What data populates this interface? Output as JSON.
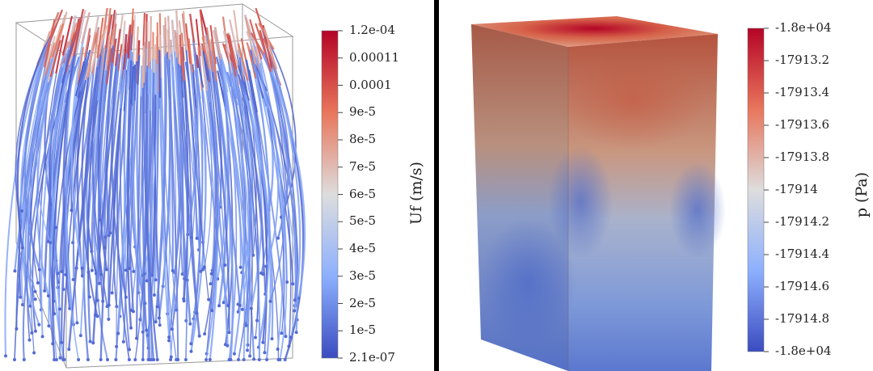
{
  "left_colorbar": {
    "title": "Uf (m/s)",
    "ticks": [
      "1.2e-04",
      "0.00011",
      "0.0001",
      "9e-5",
      "8e-5",
      "7e-5",
      "6e-5",
      "5e-5",
      "4e-5",
      "3e-5",
      "2e-5",
      "1e-5",
      "2.1e-07"
    ]
  },
  "right_colorbar": {
    "title": "p (Pa)",
    "ticks": [
      "-1.8e+04",
      "-17913.2",
      "-17913.4",
      "-17913.6",
      "-17913.8",
      "-17914",
      "-17914.2",
      "-17914.4",
      "-17914.6",
      "-17914.8",
      "-1.8e+04"
    ]
  },
  "colors": {
    "colormap_high": "#b40426",
    "colormap_mid": "#dddddd",
    "colormap_low": "#3b4cc0",
    "divider": "#000000"
  }
}
